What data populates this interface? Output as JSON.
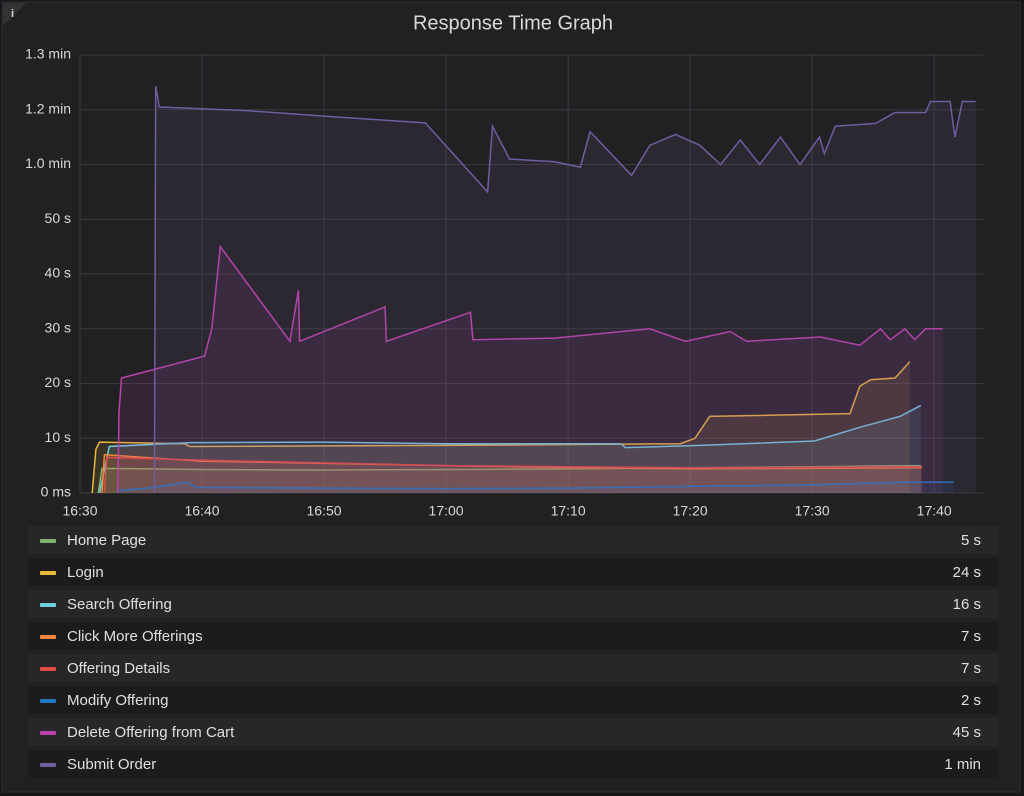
{
  "chart_data": {
    "type": "line",
    "title": "Response Time Graph",
    "xlim": [
      990,
      1064
    ],
    "xticks": [
      {
        "value": 990,
        "label": "16:30"
      },
      {
        "value": 1000,
        "label": "16:40"
      },
      {
        "value": 1010,
        "label": "16:50"
      },
      {
        "value": 1020,
        "label": "17:00"
      },
      {
        "value": 1030,
        "label": "17:10"
      },
      {
        "value": 1040,
        "label": "17:20"
      },
      {
        "value": 1050,
        "label": "17:30"
      },
      {
        "value": 1060,
        "label": "17:40"
      }
    ],
    "ylim": [
      0,
      80
    ],
    "yticks": [
      {
        "value": 0,
        "label": "0 ms"
      },
      {
        "value": 10,
        "label": "10 s"
      },
      {
        "value": 20,
        "label": "20 s"
      },
      {
        "value": 30,
        "label": "30 s"
      },
      {
        "value": 40,
        "label": "40 s"
      },
      {
        "value": 50,
        "label": "50 s"
      },
      {
        "value": 60,
        "label": "1.0 min"
      },
      {
        "value": 70,
        "label": "1.2 min"
      },
      {
        "value": 80,
        "label": "1.3 min"
      }
    ],
    "grid": true,
    "series": [
      {
        "name": "Home Page",
        "color": "#7eb26d",
        "legend_value": "5 s",
        "x": [
          991.5,
          991.8,
          1000,
          1010,
          1020,
          1030,
          1040,
          1050,
          1058.9
        ],
        "values": [
          0,
          4.5,
          4.3,
          4.2,
          4.3,
          4.4,
          4.6,
          4.8,
          5
        ]
      },
      {
        "name": "Login",
        "color": "#eab839",
        "legend_value": "24 s",
        "x": [
          991,
          991.3,
          991.6,
          998.6,
          999,
          1020,
          1039.2,
          1040.4,
          1041.6,
          1053.1,
          1053.9,
          1054.8,
          1056.8,
          1058
        ],
        "values": [
          0,
          8,
          9.3,
          9,
          8.5,
          8.7,
          9,
          10,
          14,
          14.5,
          19.5,
          20.7,
          21,
          24
        ]
      },
      {
        "name": "Search Offering",
        "color": "#6ed0e0",
        "legend_value": "16 s",
        "x": [
          991.6,
          992.4,
          999,
          1010,
          1020,
          1034.3,
          1034.7,
          1040.8,
          1050.2,
          1053.9,
          1057.2,
          1058.9
        ],
        "values": [
          0,
          8.5,
          9.2,
          9.3,
          9,
          9,
          8.3,
          8.7,
          9.5,
          12,
          14,
          16
        ]
      },
      {
        "name": "Click More Offerings",
        "color": "#ef843c",
        "legend_value": "7 s",
        "x": [
          991.8,
          992,
          1000,
          1010,
          1020,
          1030,
          1040,
          1050,
          1059
        ],
        "values": [
          0,
          7,
          5.8,
          5.4,
          5,
          4.6,
          4.4,
          4.5,
          4.6
        ]
      },
      {
        "name": "Offering Details",
        "color": "#e24d42",
        "legend_value": "7 s",
        "x": [
          992,
          992.2,
          1000,
          1010,
          1020,
          1030,
          1040,
          1050,
          1059
        ],
        "values": [
          0,
          6.5,
          6,
          5.5,
          5,
          4.8,
          4.6,
          4.7,
          4.8
        ]
      },
      {
        "name": "Modify Offering",
        "color": "#1f78c1",
        "legend_value": "2 s",
        "x": [
          993,
          996,
          998.8,
          999.5,
          1010,
          1020,
          1030,
          1040,
          1050,
          1058,
          1061.6
        ],
        "values": [
          0.4,
          1,
          2,
          1,
          0.9,
          0.8,
          0.9,
          1.2,
          1.5,
          2,
          2
        ]
      },
      {
        "name": "Delete Offering from Cart",
        "color": "#ba43a9",
        "legend_value": "45 s",
        "x": [
          993.1,
          993.2,
          993.4,
          1000.2,
          1000.8,
          1001.5,
          1007.2,
          1007.9,
          1008,
          1015,
          1015.1,
          1022,
          1022.2,
          1028.9,
          1036.7,
          1039.6,
          1043.3,
          1044.6,
          1050.7,
          1053.9,
          1055.6,
          1056.4,
          1057.6,
          1058.4,
          1059.3,
          1060.7
        ],
        "values": [
          0,
          14.8,
          21,
          25,
          30,
          45,
          27.7,
          37,
          27.7,
          34,
          27.7,
          33,
          28,
          28.3,
          30,
          27.7,
          29.5,
          27.7,
          28.5,
          27,
          30,
          28,
          30,
          28,
          30,
          30
        ]
      },
      {
        "name": "Submit Order",
        "color": "#705da0",
        "legend_value": "1 min",
        "x": [
          996.1,
          996.2,
          996.5,
          1003.9,
          1010.9,
          1018.3,
          1023.4,
          1023.8,
          1025.2,
          1028.9,
          1031,
          1031.8,
          1035.2,
          1036.7,
          1038.8,
          1040.8,
          1042.5,
          1044.1,
          1045.7,
          1047.4,
          1049,
          1050.6,
          1051,
          1051.9,
          1055.2,
          1056.8,
          1059.3,
          1059.7,
          1061.3,
          1061.7,
          1062.3,
          1063.4
        ],
        "values": [
          0,
          74.3,
          70.5,
          69.8,
          68.7,
          67.6,
          55,
          67,
          61,
          60.5,
          59.5,
          66,
          58,
          63.5,
          65.5,
          63.5,
          60,
          64.5,
          60,
          65,
          60,
          65,
          62,
          67,
          67.5,
          69.5,
          69.5,
          71.5,
          71.5,
          65,
          71.5,
          71.5
        ]
      }
    ]
  }
}
